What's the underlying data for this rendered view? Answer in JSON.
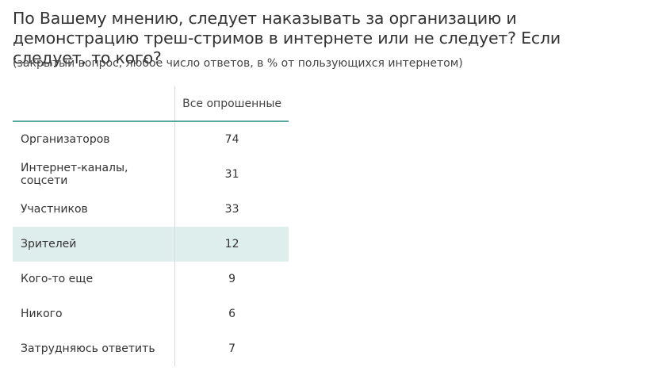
{
  "title": "По Вашему мнению, следует наказывать за организацию и демонстрацию треш-стримов в интернете или не следует? Если следует, то кого?",
  "subtitle": "(закрытый вопрос, любое число ответов, в % от пользующихся интернетом)",
  "colors": {
    "header_rule": "#5aa7a1",
    "highlight_row": "#deeeec",
    "divider": "#d6dcdb"
  },
  "chart_data": {
    "type": "table",
    "columns": [
      "",
      "Все опрошенные"
    ],
    "rows": [
      {
        "label": "Организаторов",
        "value": "74"
      },
      {
        "label": "Интернет-каналы, соцсети",
        "value": "31"
      },
      {
        "label": "Участников",
        "value": "33"
      },
      {
        "label": "Зрителей",
        "value": "12",
        "highlighted": true
      },
      {
        "label": "Кого-то еще",
        "value": "9"
      },
      {
        "label": "Никого",
        "value": "6"
      },
      {
        "label": "Затрудняюсь ответить",
        "value": "7"
      }
    ]
  }
}
